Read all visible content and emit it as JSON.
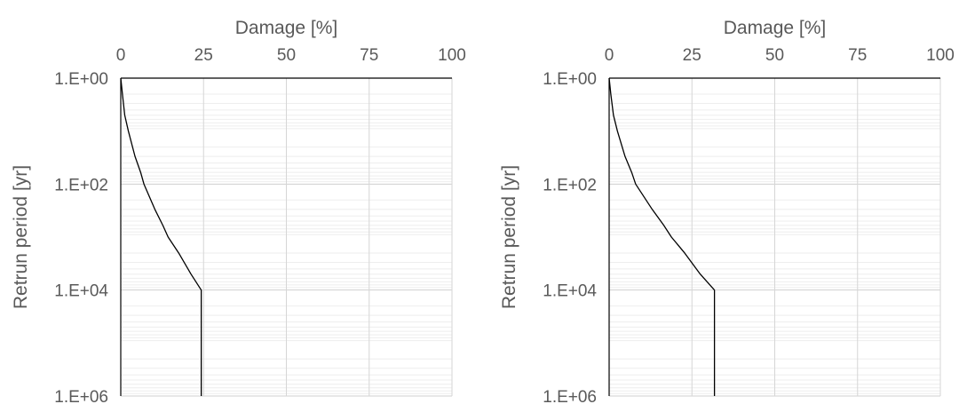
{
  "chart_data": [
    {
      "type": "line",
      "title": "",
      "xlabel": "Damage [%]",
      "ylabel": "Retrun period [yr]",
      "x_axis_position": "top",
      "xlim": [
        0,
        100
      ],
      "x_ticks": [
        0,
        25,
        50,
        75,
        100
      ],
      "y_scale": "log",
      "y_inverted": true,
      "ylim": [
        1,
        1000000
      ],
      "y_ticks": [
        1,
        100,
        10000,
        1000000
      ],
      "y_tick_labels": [
        "1.E+00",
        "1.E+02",
        "1.E+04",
        "1.E+06"
      ],
      "grid": true,
      "legend": "none",
      "series": [
        {
          "color": "#000000",
          "points": [
            {
              "x": 0,
              "y": 1
            },
            {
              "x": 0.5,
              "y": 2
            },
            {
              "x": 1.2,
              "y": 5
            },
            {
              "x": 2.3,
              "y": 10
            },
            {
              "x": 4.3,
              "y": 30
            },
            {
              "x": 6,
              "y": 60
            },
            {
              "x": 7,
              "y": 100
            },
            {
              "x": 10.3,
              "y": 300
            },
            {
              "x": 12.7,
              "y": 600
            },
            {
              "x": 14.3,
              "y": 1000
            },
            {
              "x": 17.5,
              "y": 2000
            },
            {
              "x": 21.2,
              "y": 5000
            },
            {
              "x": 24.3,
              "y": 10000
            },
            {
              "x": 24.3,
              "y": 1000000
            }
          ]
        }
      ]
    },
    {
      "type": "line",
      "title": "",
      "xlabel": "Damage [%]",
      "ylabel": "Retrun period [yr]",
      "x_axis_position": "top",
      "xlim": [
        0,
        100
      ],
      "x_ticks": [
        0,
        25,
        50,
        75,
        100
      ],
      "y_scale": "log",
      "y_inverted": true,
      "ylim": [
        1,
        1000000
      ],
      "y_ticks": [
        1,
        100,
        10000,
        1000000
      ],
      "y_tick_labels": [
        "1.E+00",
        "1.E+02",
        "1.E+04",
        "1.E+06"
      ],
      "grid": true,
      "legend": "none",
      "series": [
        {
          "color": "#000000",
          "points": [
            {
              "x": 0,
              "y": 1
            },
            {
              "x": 0.5,
              "y": 2
            },
            {
              "x": 1.3,
              "y": 5
            },
            {
              "x": 2.5,
              "y": 10
            },
            {
              "x": 4.8,
              "y": 30
            },
            {
              "x": 6.8,
              "y": 60
            },
            {
              "x": 8,
              "y": 100
            },
            {
              "x": 13,
              "y": 300
            },
            {
              "x": 16.5,
              "y": 600
            },
            {
              "x": 18.8,
              "y": 1000
            },
            {
              "x": 22.8,
              "y": 2000
            },
            {
              "x": 27.5,
              "y": 5000
            },
            {
              "x": 31.8,
              "y": 10000
            },
            {
              "x": 31.8,
              "y": 1000000
            }
          ]
        }
      ]
    }
  ]
}
